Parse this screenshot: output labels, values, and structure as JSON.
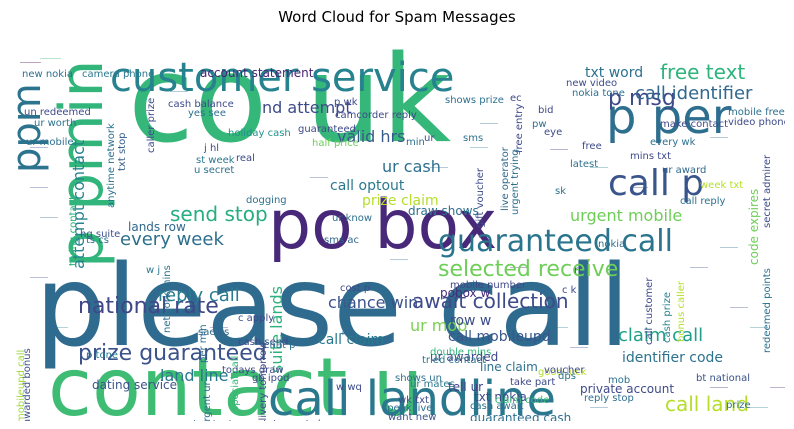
{
  "title": "Word Cloud for Spam Messages",
  "palette": [
    "#440154",
    "#482878",
    "#3e4a89",
    "#31688e",
    "#26828e",
    "#1f9e89",
    "#35b779",
    "#6ece58",
    "#b5de2b",
    "#fde725"
  ],
  "words": [
    {
      "t": "co uk",
      "c": "#35b779"
    },
    {
      "t": "please call",
      "c": "#2f6b8e"
    },
    {
      "t": "contact u",
      "c": "#3fbc73"
    },
    {
      "t": "po box",
      "c": "#482878"
    },
    {
      "t": "call landline",
      "c": "#2a788e"
    },
    {
      "t": "p pmin",
      "c": "#31b57b"
    },
    {
      "t": "ppm",
      "c": "#2c738e"
    },
    {
      "t": "p per",
      "c": "#2e6e8e"
    },
    {
      "t": "customer service",
      "c": "#26828e"
    },
    {
      "t": "call p",
      "c": "#3a548c"
    },
    {
      "t": "guaranteed call",
      "c": "#2b748e"
    },
    {
      "t": "selected receive",
      "c": "#6ece58"
    },
    {
      "t": "national rate",
      "c": "#3f4788"
    },
    {
      "t": "prize guaranteed",
      "c": "#3b528b"
    },
    {
      "t": "free text",
      "c": "#2fb47c"
    },
    {
      "t": "p msg",
      "c": "#3e4989"
    },
    {
      "t": "call identifier",
      "c": "#31688e"
    },
    {
      "t": "claim call",
      "c": "#1f9e89"
    },
    {
      "t": "call land",
      "c": "#b5de2b"
    },
    {
      "t": "send stop",
      "c": "#26ad81"
    },
    {
      "t": "reply call",
      "c": "#287c8e"
    },
    {
      "t": "every week",
      "c": "#2e6f8e"
    },
    {
      "t": "chance win",
      "c": "#3b528b"
    },
    {
      "t": "await collection",
      "c": "#3e4a89"
    },
    {
      "t": "call mobileupd",
      "c": "#39568c"
    },
    {
      "t": "call claim",
      "c": "#29798e"
    },
    {
      "t": "suite lands",
      "c": "#2db27d"
    },
    {
      "t": "land line",
      "c": "#2a788e"
    },
    {
      "t": "attempt contact",
      "c": "#26828e"
    },
    {
      "t": "valid hrs",
      "c": "#38598c"
    },
    {
      "t": "ur cash",
      "c": "#2d708e"
    },
    {
      "t": "urgent mobile",
      "c": "#6ece58"
    },
    {
      "t": "nd attempt",
      "c": "#3e4a89"
    },
    {
      "t": "txt word",
      "c": "#2c728e"
    },
    {
      "t": "ur mob",
      "c": "#7ad151"
    },
    {
      "t": "row w",
      "c": "#3d4d8a"
    },
    {
      "t": "tell ur",
      "c": "#414487"
    },
    {
      "t": "pobox w",
      "c": "#472c7a"
    },
    {
      "t": "call optout",
      "c": "#2a788e"
    },
    {
      "t": "prize claim",
      "c": "#b5de2b"
    },
    {
      "t": "identifier code",
      "c": "#2c728e"
    },
    {
      "t": "dating service",
      "c": "#3b528b"
    },
    {
      "t": "claim ur",
      "c": "#2f6c8e"
    },
    {
      "t": "private account",
      "c": "#3e4a89"
    },
    {
      "t": "account statement",
      "c": "#482475"
    },
    {
      "t": "code expires",
      "c": "#6ece58"
    },
    {
      "t": "lands row",
      "c": "#31688e"
    },
    {
      "t": "txt stop",
      "c": "#355f8d"
    },
    {
      "t": "holiday cash",
      "c": "#21918c"
    },
    {
      "t": "anytime network",
      "c": "#2c728e"
    },
    {
      "t": "draw shows",
      "c": "#2d708e"
    },
    {
      "t": "mobile number",
      "c": "#3f4788"
    },
    {
      "t": "double mins",
      "c": "#32b67a"
    },
    {
      "t": "ur awarded",
      "c": "#3e4a89"
    },
    {
      "t": "line claim",
      "c": "#2d708e"
    },
    {
      "t": "txt nokia",
      "c": "#3e4a89"
    },
    {
      "t": "guaranteed cash",
      "c": "#2d708e"
    },
    {
      "t": "hg suite",
      "c": "#3b528b"
    },
    {
      "t": "trying contact",
      "c": "#2db27d"
    },
    {
      "t": "ts cs",
      "c": "#2d708e"
    },
    {
      "t": "p tone",
      "c": "#2a788e"
    },
    {
      "t": "receive award",
      "c": "#1f9e89"
    },
    {
      "t": "awarded bonus",
      "c": "#3b528b"
    },
    {
      "t": "mobileupd call",
      "c": "#9dd93b"
    },
    {
      "t": "call customer",
      "c": "#3e4a89"
    },
    {
      "t": "bt national",
      "c": "#3b528b"
    },
    {
      "t": "reply stop",
      "c": "#2d708e"
    },
    {
      "t": "cash prize",
      "c": "#26828e"
    },
    {
      "t": "bonus caller",
      "c": "#b5de2b"
    },
    {
      "t": "wk txt",
      "c": "#3e4a89"
    },
    {
      "t": "speak live",
      "c": "#2d708e"
    },
    {
      "t": "want new",
      "c": "#3b528b"
    },
    {
      "t": "ur mates",
      "c": "#2a788e"
    },
    {
      "t": "cash await",
      "c": "#2d708e"
    },
    {
      "t": "claim code",
      "c": "#35b779"
    },
    {
      "t": "take part",
      "c": "#3e4a89"
    },
    {
      "t": "stop text",
      "c": "#2a788e"
    },
    {
      "t": "statement shows",
      "c": "#3e4a89"
    },
    {
      "t": "tried contact",
      "c": "#2a788e"
    },
    {
      "t": "shows un",
      "c": "#2d708e"
    },
    {
      "t": "c apply",
      "c": "#3e4a89"
    },
    {
      "t": "sae cs",
      "c": "#31688e"
    },
    {
      "t": "per min",
      "c": "#2d708e"
    },
    {
      "t": "w wq",
      "c": "#3e4a89"
    },
    {
      "t": "tone ur",
      "c": "#2d708e"
    },
    {
      "t": "w j",
      "c": "#2a788e"
    },
    {
      "t": "ur know",
      "c": "#2d708e"
    },
    {
      "t": "cost p",
      "c": "#3e4a89"
    },
    {
      "t": "sms ac",
      "c": "#31688e"
    },
    {
      "t": "network mins",
      "c": "#2d708e"
    },
    {
      "t": "free entry",
      "c": "#3e4a89"
    },
    {
      "t": "urgent trying",
      "c": "#2d708e"
    },
    {
      "t": "live operator",
      "c": "#31688e"
    },
    {
      "t": "gift voucher",
      "c": "#3e4a89"
    },
    {
      "t": "u secret",
      "c": "#2d708e"
    },
    {
      "t": "st week",
      "c": "#2a788e"
    },
    {
      "t": "j hl",
      "c": "#3e4a89"
    },
    {
      "t": "half price",
      "c": "#6ece58"
    },
    {
      "t": "camcorder reply",
      "c": "#3e4a89"
    },
    {
      "t": "shows prize",
      "c": "#2d708e"
    },
    {
      "t": "p wk",
      "c": "#3e4a89"
    },
    {
      "t": "new nokia",
      "c": "#2d708e"
    },
    {
      "t": "camera phone",
      "c": "#2a788e"
    },
    {
      "t": "new video",
      "c": "#3e4a89"
    },
    {
      "t": "nokia tone",
      "c": "#2d708e"
    },
    {
      "t": "make contact",
      "c": "#3e4a89"
    },
    {
      "t": "mobile free",
      "c": "#2d708e"
    },
    {
      "t": "video phone",
      "c": "#3e4a89"
    },
    {
      "t": "every wk",
      "c": "#2d708e"
    },
    {
      "t": "mins txt",
      "c": "#3e4a89"
    },
    {
      "t": "week txt",
      "c": "#b5de2b"
    },
    {
      "t": "call reply",
      "c": "#2d708e"
    },
    {
      "t": "secret admirer",
      "c": "#3e4a89"
    },
    {
      "t": "redeemed points",
      "c": "#2d708e"
    },
    {
      "t": "un redeemed",
      "c": "#3e4a89"
    },
    {
      "t": "ur mobile",
      "c": "#2d708e"
    },
    {
      "t": "caller prize",
      "c": "#3e4a89"
    },
    {
      "t": "ur award",
      "c": "#31688e"
    },
    {
      "t": "delivery tomorrow",
      "c": "#3e4a89"
    },
    {
      "t": "urgent ur",
      "c": "#2d708e"
    },
    {
      "t": "good luck",
      "c": "#b5de2b"
    },
    {
      "t": "cash send",
      "c": "#3e4a89"
    },
    {
      "t": "chat p",
      "c": "#2d708e"
    },
    {
      "t": "todays draw",
      "c": "#3e4a89"
    },
    {
      "t": "special call",
      "c": "#35b779"
    },
    {
      "t": "gb ipod",
      "c": "#3e4a89"
    },
    {
      "t": "dogging",
      "c": "#2d708e"
    },
    {
      "t": "c k",
      "c": "#3e4a89"
    },
    {
      "t": "prize",
      "c": "#2d708e"
    },
    {
      "t": "ur worth",
      "c": "#2d708e"
    },
    {
      "t": "cash balance",
      "c": "#3e4a89"
    },
    {
      "t": "real",
      "c": "#3e4a89"
    },
    {
      "t": "yes see",
      "c": "#2d708e"
    },
    {
      "t": "guaranteed",
      "c": "#3e4a89"
    },
    {
      "t": "min",
      "c": "#2d708e"
    },
    {
      "t": "ur",
      "c": "#3e4a89"
    },
    {
      "t": "sms",
      "c": "#2d708e"
    },
    {
      "t": "free",
      "c": "#3e4a89"
    },
    {
      "t": "latest",
      "c": "#2d708e"
    },
    {
      "t": "bid",
      "c": "#3e4a89"
    },
    {
      "t": "sk",
      "c": "#2d708e"
    },
    {
      "t": "rt",
      "c": "#3e4a89"
    },
    {
      "t": "pw",
      "c": "#2d708e"
    },
    {
      "t": "eye",
      "c": "#3e4a89"
    },
    {
      "t": "nokia",
      "c": "#2d708e"
    },
    {
      "t": "voucher",
      "c": "#3e4a89"
    },
    {
      "t": "dps",
      "c": "#2d708e"
    },
    {
      "t": "ec",
      "c": "#3e4a89"
    },
    {
      "t": "mob",
      "c": "#2d708e"
    }
  ]
}
